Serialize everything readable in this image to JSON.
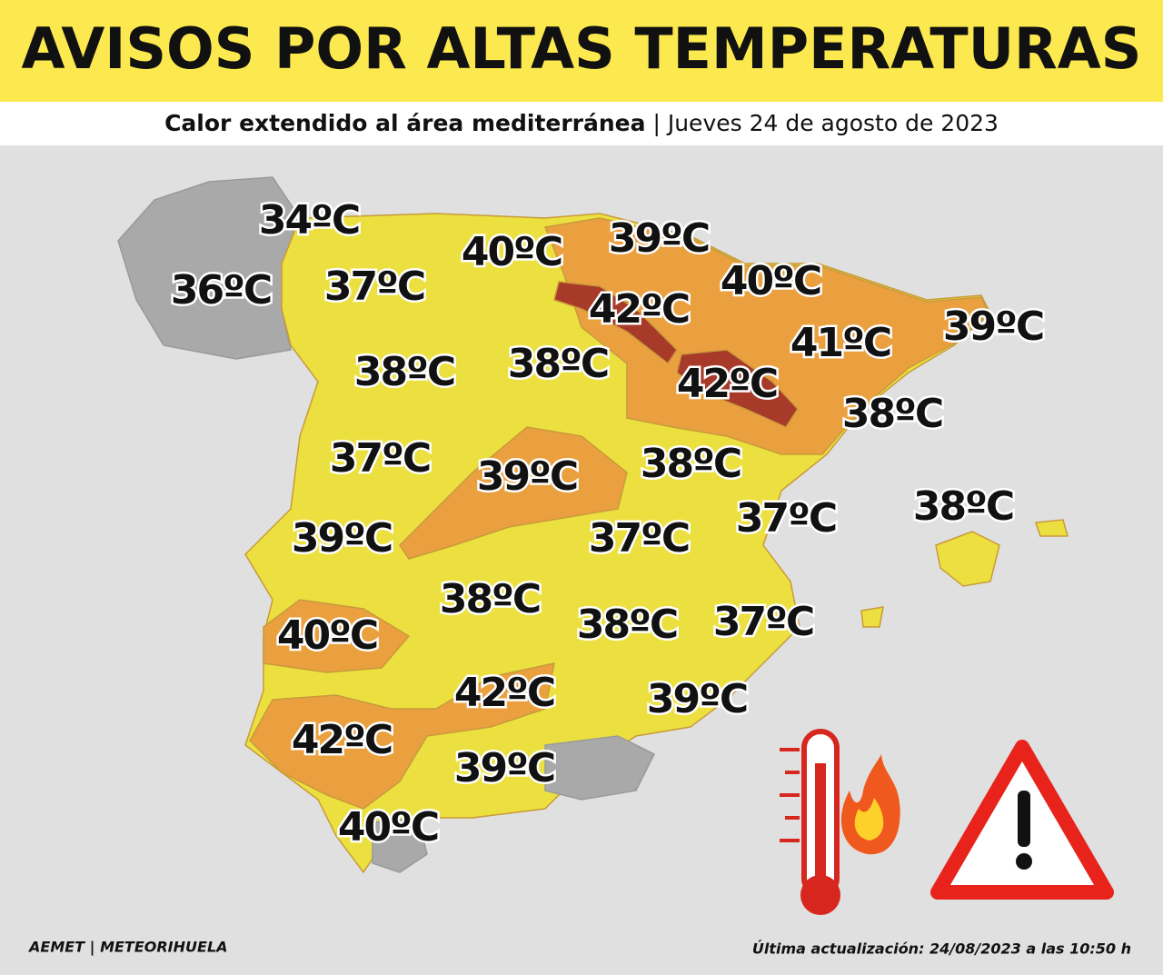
{
  "header": {
    "title": "AVISOS POR ALTAS TEMPERATURAS",
    "subtitle_main": "Calor extendido al área mediterránea",
    "subtitle_separator": "|",
    "subtitle_date": "Jueves 24 de agosto de 2023"
  },
  "map": {
    "labels": [
      "34ºC",
      "36ºC",
      "37ºC",
      "40ºC",
      "39ºC",
      "40ºC",
      "42ºC",
      "41ºC",
      "39ºC",
      "38ºC",
      "38ºC",
      "42ºC",
      "38ºC",
      "37ºC",
      "39ºC",
      "38ºC",
      "37ºC",
      "38ºC",
      "39ºC",
      "37ºC",
      "38ºC",
      "38ºC",
      "37ºC",
      "40ºC",
      "42ºC",
      "39ºC",
      "42ºC",
      "39ºC",
      "40ºC"
    ]
  },
  "footer": {
    "source": "AEMET | METEORIHUELA",
    "updated": "Última actualización: 24/08/2023 a las 10:50 h"
  }
}
